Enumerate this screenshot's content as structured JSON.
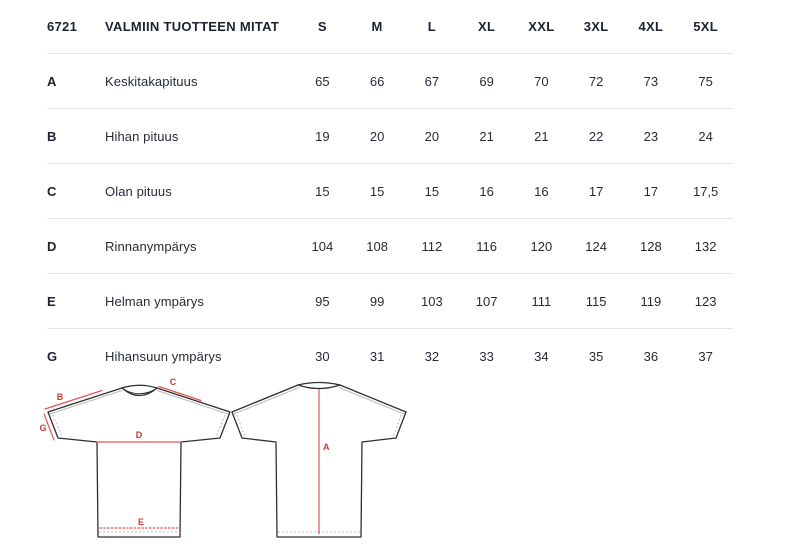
{
  "table": {
    "product_code": "6721",
    "title": "VALMIIN TUOTTEEN MITAT",
    "sizes": [
      "S",
      "M",
      "L",
      "XL",
      "XXL",
      "3XL",
      "4XL",
      "5XL"
    ],
    "rows": [
      {
        "key": "A",
        "label": "Keskitakapituus",
        "values": [
          "65",
          "66",
          "67",
          "69",
          "70",
          "72",
          "73",
          "75"
        ]
      },
      {
        "key": "B",
        "label": "Hihan pituus",
        "values": [
          "19",
          "20",
          "20",
          "21",
          "21",
          "22",
          "23",
          "24"
        ]
      },
      {
        "key": "C",
        "label": "Olan pituus",
        "values": [
          "15",
          "15",
          "15",
          "16",
          "16",
          "17",
          "17",
          "17,5"
        ]
      },
      {
        "key": "D",
        "label": "Rinnanympärys",
        "values": [
          "104",
          "108",
          "112",
          "116",
          "120",
          "124",
          "128",
          "132"
        ]
      },
      {
        "key": "E",
        "label": "Helman ympärys",
        "values": [
          "95",
          "99",
          "103",
          "107",
          "111",
          "115",
          "119",
          "123"
        ]
      },
      {
        "key": "G",
        "label": "Hihansuun ympärys",
        "values": [
          "30",
          "31",
          "32",
          "33",
          "34",
          "35",
          "36",
          "37"
        ]
      }
    ]
  },
  "diagram_labels": {
    "back_length": "A",
    "sleeve_length": "B",
    "shoulder_length": "C",
    "chest_width": "D",
    "hem_width": "E",
    "cuff_width": "G"
  },
  "colors": {
    "text_dark": "#1d2130",
    "text_regular": "#272b38",
    "divider": "#e3e3e3",
    "annotation_line": "#e0574f",
    "annotation_label": "#c63c32",
    "shirt_outline": "#2f2f2f",
    "seam_gray": "#bcbcbc",
    "background": "#ffffff"
  }
}
